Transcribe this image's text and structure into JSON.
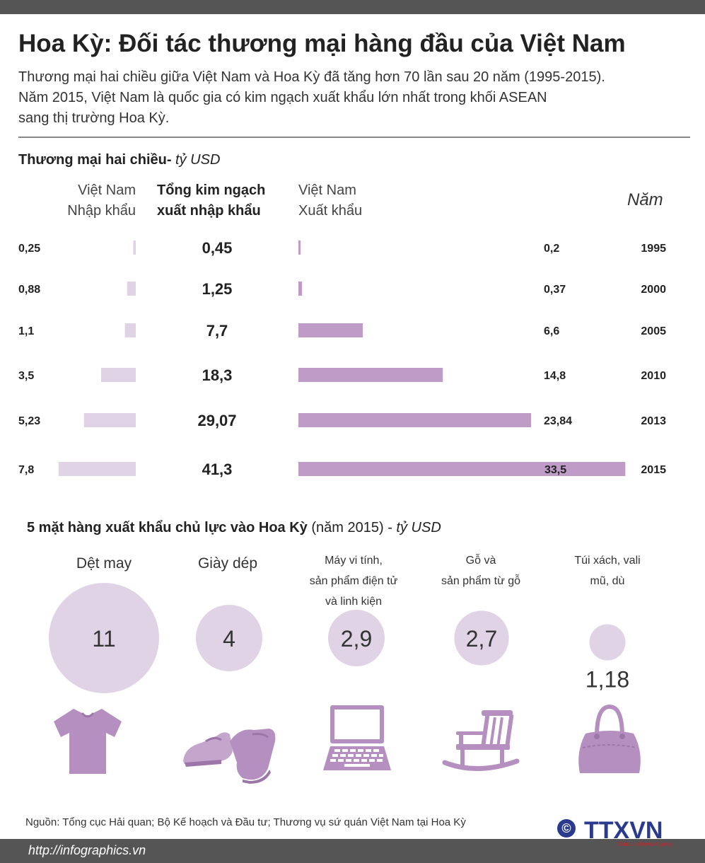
{
  "title": "Hoa Kỳ: Đối tác thương mại hàng đầu của Việt Nam",
  "intro": [
    "Thương mại hai chiều giữa Việt Nam và Hoa Kỳ đã tăng hơn 70 lần sau 20 năm (1995-2015).",
    "Năm 2015, Việt Nam là quốc gia có kim ngạch xuất khẩu lớn nhất trong khối ASEAN",
    "sang thị trường Hoa Kỳ."
  ],
  "trade": {
    "section_title": "Thương mại hai chiều-",
    "section_unit": " tỷ USD",
    "col_import": [
      "Việt Nam",
      "Nhập khẩu"
    ],
    "col_total": [
      "Tổng kim ngạch",
      "xuất nhập khẩu"
    ],
    "col_export": [
      "Việt Nam",
      "Xuất khẩu"
    ],
    "col_year": "Năm"
  },
  "exports": {
    "section_title": "5 mặt hàng xuất khẩu chủ lực vào Hoa Kỳ",
    "section_year": " (năm 2015) - ",
    "section_unit": "tỷ USD",
    "labels": [
      [
        "Dệt may"
      ],
      [
        "Giày dép"
      ],
      [
        "Máy vi tính,",
        "sản phẩm điện tử",
        "và linh kiện"
      ],
      [
        "Gỗ và",
        "sản phẩm từ gỗ"
      ],
      [
        "Túi xách, vali",
        "mũ, dù"
      ]
    ],
    "icons": [
      "shirt-icon",
      "shoes-icon",
      "laptop-icon",
      "rocking-chair-icon",
      "handbag-icon"
    ]
  },
  "chart_data": [
    {
      "type": "bar",
      "categories": [
        "1995",
        "2000",
        "2005",
        "2010",
        "2013",
        "2015"
      ],
      "series": [
        {
          "name": "Việt Nam Nhập khẩu",
          "values": [
            0.25,
            0.88,
            1.1,
            3.5,
            5.23,
            7.8
          ]
        },
        {
          "name": "Tổng kim ngạch xuất nhập khẩu",
          "values": [
            0.45,
            1.25,
            7.7,
            18.3,
            29.07,
            41.3
          ]
        },
        {
          "name": "Việt Nam Xuất khẩu",
          "values": [
            0.2,
            0.37,
            6.6,
            14.8,
            23.84,
            33.5
          ]
        }
      ],
      "value_labels": {
        "import": [
          "0,25",
          "0,88",
          "1,1",
          "3,5",
          "5,23",
          "7,8"
        ],
        "total": [
          "0,45",
          "1,25",
          "7,7",
          "18,3",
          "29,07",
          "41,3"
        ],
        "export": [
          "0,2",
          "0,37",
          "6,6",
          "14,8",
          "23,84",
          "33,5"
        ]
      },
      "colors": {
        "import": "#e0d3e6",
        "export": "#bf9bc7"
      }
    },
    {
      "type": "bubble",
      "categories": [
        "Dệt may",
        "Giày dép",
        "Máy vi tính, sản phẩm điện tử và linh kiện",
        "Gỗ và sản phẩm từ gỗ",
        "Túi xách, vali mũ, dù"
      ],
      "values": [
        11,
        4,
        2.9,
        2.7,
        1.18
      ],
      "value_labels": [
        "11",
        "4",
        "2,9",
        "2,7",
        "1,18"
      ],
      "colors": {
        "bubble": "#e0d3e6",
        "icon": "#b48fbf"
      }
    }
  ],
  "footer": {
    "source": "Nguồn: Tổng cục Hải quan; Bộ Kế hoạch và Đầu tư; Thương vụ sứ quán Việt Nam tại Hoa Kỳ",
    "site": "http://infographics.vn",
    "copyright": "©",
    "logo": "TTXVN",
    "logo_sub": "Vietnam News Agency"
  }
}
